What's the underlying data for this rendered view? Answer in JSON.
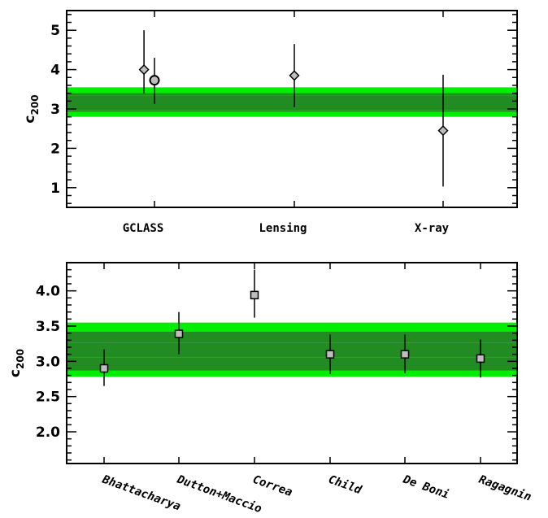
{
  "colors": {
    "band_outer": "#00ee00",
    "band_inner": "#228b22",
    "band_line": "#ffffff",
    "marker_fill": "#bebebe",
    "axis": "#000000"
  },
  "chart_data": [
    {
      "type": "scatter",
      "title": "",
      "xlabel": "",
      "ylabel": "c",
      "ylabel_sub": "200",
      "ylim": [
        0.5,
        5.5
      ],
      "yticks": [
        1,
        2,
        3,
        4,
        5
      ],
      "ytick_labels": [
        "1",
        "2",
        "3",
        "4",
        "5"
      ],
      "categories": [
        "GCLASS",
        "Lensing",
        "X-ray"
      ],
      "band": {
        "outer": [
          2.8,
          3.55
        ],
        "inner": [
          2.93,
          3.4
        ],
        "center": 3.15
      },
      "points": [
        {
          "category": "GCLASS",
          "offset": -0.25,
          "y": 4.0,
          "err_low": 3.4,
          "err_high": 5.0,
          "marker": "diamond"
        },
        {
          "category": "GCLASS",
          "offset": 0.0,
          "y": 3.73,
          "err_low": 3.13,
          "err_high": 4.3,
          "marker": "circle"
        },
        {
          "category": "Lensing",
          "offset": 0.0,
          "y": 3.85,
          "err_low": 3.05,
          "err_high": 4.65,
          "marker": "diamond"
        },
        {
          "category": "X-ray",
          "offset": 0.0,
          "y": 2.45,
          "err_low": 1.03,
          "err_high": 3.87,
          "marker": "diamond"
        }
      ]
    },
    {
      "type": "scatter",
      "title": "",
      "xlabel": "",
      "ylabel": "c",
      "ylabel_sub": "200",
      "ylim": [
        1.55,
        4.4
      ],
      "yticks": [
        2.0,
        2.5,
        3.0,
        3.5,
        4.0
      ],
      "ytick_labels": [
        "2.0",
        "2.5",
        "3.0",
        "3.5",
        "4.0"
      ],
      "categories": [
        "Bhattacharya",
        "Dutton+Maccio",
        "Correa",
        "Child",
        "De Boni",
        "Ragagnin"
      ],
      "band": {
        "outer": [
          2.78,
          3.55
        ],
        "inner": [
          2.87,
          3.42
        ],
        "center": 3.16
      },
      "points": [
        {
          "category": "Bhattacharya",
          "y": 2.9,
          "err_low": 2.65,
          "err_high": 3.17,
          "marker": "square"
        },
        {
          "category": "Dutton+Maccio",
          "y": 3.39,
          "err_low": 3.1,
          "err_high": 3.7,
          "marker": "square"
        },
        {
          "category": "Correa",
          "y": 3.94,
          "err_low": 3.62,
          "err_high": 4.3,
          "marker": "square"
        },
        {
          "category": "Child",
          "y": 3.1,
          "err_low": 2.82,
          "err_high": 3.38,
          "marker": "square"
        },
        {
          "category": "De Boni",
          "y": 3.1,
          "err_low": 2.83,
          "err_high": 3.38,
          "marker": "square"
        },
        {
          "category": "Ragagnin",
          "y": 3.04,
          "err_low": 2.77,
          "err_high": 3.31,
          "marker": "square"
        }
      ]
    }
  ]
}
